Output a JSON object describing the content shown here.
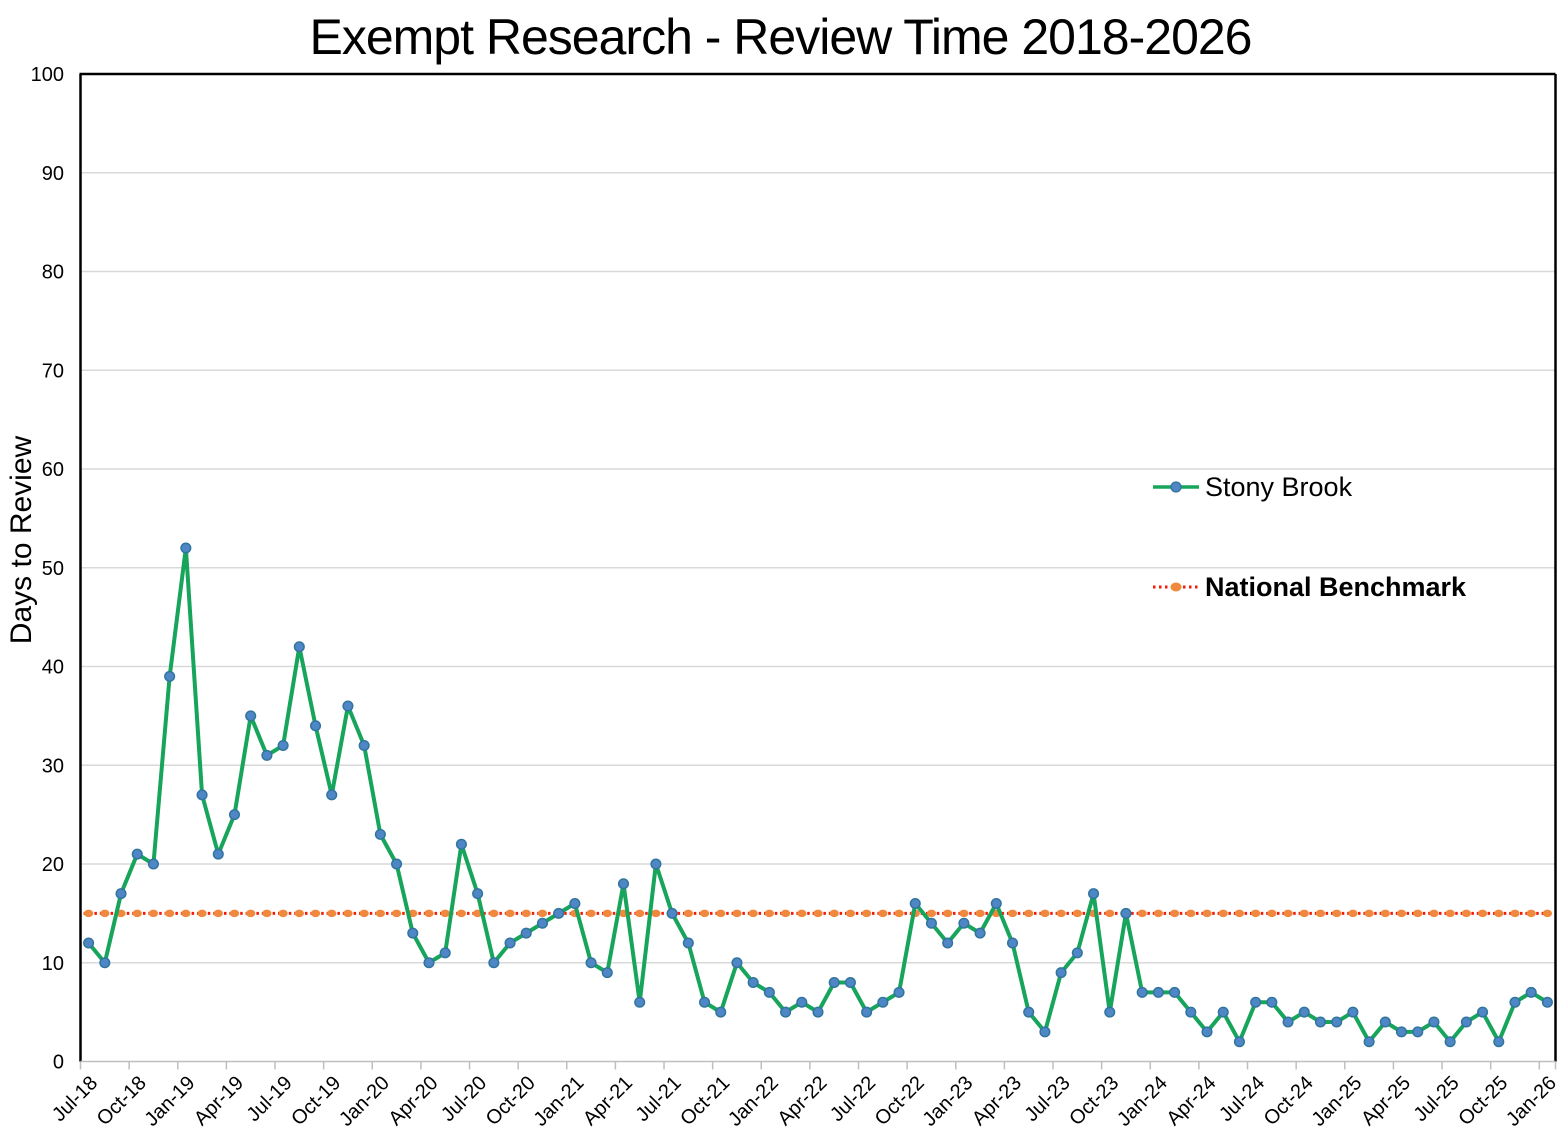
{
  "title": "Exempt Research - Review Time 2018-2026",
  "y_axis": {
    "label": "Days to Review",
    "min": 0,
    "max": 100,
    "tick_step": 10,
    "ticks": [
      0,
      10,
      20,
      30,
      40,
      50,
      60,
      70,
      80,
      90,
      100
    ]
  },
  "x_axis": {
    "label_step": 3,
    "first_label": "Jul-18",
    "last_label": "Jan-26"
  },
  "legend": {
    "stony_brook": "Stony Brook",
    "national_benchmark": "National Benchmark"
  },
  "colors": {
    "stony_brook_line": "#17a45b",
    "stony_brook_marker_fill": "#4f86c6",
    "stony_brook_marker_stroke": "#31759e",
    "benchmark_dot_line": "#f01c08",
    "benchmark_marker": "#f0883e",
    "gridline": "#d9d9d9",
    "axis_gray": "#bfbfbf",
    "axis_black": "#000000"
  },
  "chart_data": {
    "type": "line",
    "title": "Exempt Research - Review Time 2018-2026",
    "xlabel": "",
    "ylabel": "Days to Review",
    "ylim": [
      0,
      100
    ],
    "grid": "horizontal",
    "legend_position": "inside-right",
    "categories": [
      "Jul-18",
      "Aug-18",
      "Sep-18",
      "Oct-18",
      "Nov-18",
      "Dec-18",
      "Jan-19",
      "Feb-19",
      "Mar-19",
      "Apr-19",
      "May-19",
      "Jun-19",
      "Jul-19",
      "Aug-19",
      "Sep-19",
      "Oct-19",
      "Nov-19",
      "Dec-19",
      "Jan-20",
      "Feb-20",
      "Mar-20",
      "Apr-20",
      "May-20",
      "Jun-20",
      "Jul-20",
      "Aug-20",
      "Sep-20",
      "Oct-20",
      "Nov-20",
      "Dec-20",
      "Jan-21",
      "Feb-21",
      "Mar-21",
      "Apr-21",
      "May-21",
      "Jun-21",
      "Jul-21",
      "Aug-21",
      "Sep-21",
      "Oct-21",
      "Nov-21",
      "Dec-21",
      "Jan-22",
      "Feb-22",
      "Mar-22",
      "Apr-22",
      "May-22",
      "Jun-22",
      "Jul-22",
      "Aug-22",
      "Sep-22",
      "Oct-22",
      "Nov-22",
      "Dec-22",
      "Jan-23",
      "Feb-23",
      "Mar-23",
      "Apr-23",
      "May-23",
      "Jun-23",
      "Jul-23",
      "Aug-23",
      "Sep-23",
      "Oct-23",
      "Nov-23",
      "Dec-23",
      "Jan-24",
      "Feb-24",
      "Mar-24",
      "Apr-24",
      "May-24",
      "Jun-24",
      "Jul-24",
      "Aug-24",
      "Sep-24",
      "Oct-24",
      "Nov-24",
      "Dec-24",
      "Jan-25",
      "Feb-25",
      "Mar-25",
      "Apr-25",
      "May-25",
      "Jun-25",
      "Jul-25",
      "Aug-25",
      "Sep-25",
      "Oct-25",
      "Nov-25",
      "Dec-25",
      "Jan-26"
    ],
    "series": [
      {
        "name": "Stony Brook",
        "values": [
          12,
          10,
          17,
          21,
          20,
          39,
          52,
          27,
          21,
          25,
          35,
          31,
          32,
          42,
          34,
          27,
          36,
          32,
          23,
          20,
          13,
          10,
          11,
          22,
          17,
          10,
          12,
          13,
          14,
          15,
          16,
          10,
          9,
          18,
          6,
          20,
          15,
          12,
          6,
          5,
          10,
          8,
          7,
          5,
          6,
          5,
          8,
          8,
          5,
          6,
          7,
          16,
          14,
          12,
          14,
          13,
          16,
          12,
          5,
          3,
          9,
          11,
          17,
          5,
          15,
          7,
          7,
          7,
          5,
          3,
          5,
          2,
          6,
          6,
          4,
          5,
          4,
          4,
          5,
          2,
          4,
          3,
          3,
          4,
          2,
          4,
          5,
          2,
          6,
          7,
          6
        ]
      },
      {
        "name": "National Benchmark",
        "constant_value": 15
      }
    ]
  }
}
